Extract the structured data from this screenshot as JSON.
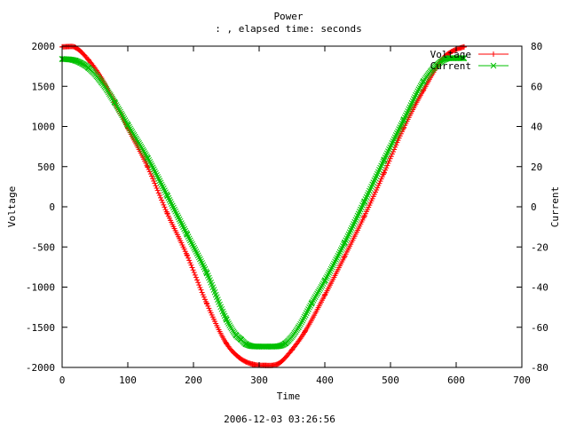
{
  "chart_data": {
    "type": "line",
    "title": "Power",
    "subtitle": ": , elapsed time:  seconds",
    "xlabel": "Time",
    "ylabel": "Voltage",
    "y2label": "Current",
    "footer": "2006-12-03 03:26:56",
    "xlim": [
      0,
      700
    ],
    "ylim": [
      -2000,
      2000
    ],
    "y2lim": [
      -80,
      80
    ],
    "x_ticks": [
      0,
      100,
      200,
      300,
      400,
      500,
      600,
      700
    ],
    "y_ticks": [
      -2000,
      -1500,
      -1000,
      -500,
      0,
      500,
      1000,
      1500,
      2000
    ],
    "y2_ticks": [
      -80,
      -60,
      -40,
      -20,
      0,
      20,
      40,
      60,
      80
    ],
    "grid": false,
    "legend_position": "top-right",
    "series": [
      {
        "name": "Voltage",
        "axis": "left",
        "marker": "plus",
        "color": "#ff0000",
        "x": [
          0,
          10,
          20,
          40,
          60,
          80,
          100,
          130,
          160,
          190,
          220,
          250,
          270,
          290,
          310,
          330,
          350,
          370,
          400,
          430,
          460,
          490,
          520,
          550,
          580,
          600,
          612
        ],
        "y": [
          1990,
          1995,
          1985,
          1830,
          1600,
          1300,
          980,
          500,
          -80,
          -600,
          -1200,
          -1700,
          -1880,
          -1960,
          -1975,
          -1950,
          -1780,
          -1550,
          -1100,
          -620,
          -120,
          420,
          980,
          1450,
          1850,
          1960,
          1990
        ]
      },
      {
        "name": "Current",
        "axis": "right",
        "marker": "x",
        "color": "#00c000",
        "x": [
          0,
          10,
          20,
          40,
          60,
          80,
          100,
          130,
          160,
          190,
          220,
          250,
          265,
          272,
          280,
          300,
          320,
          340,
          360,
          380,
          400,
          430,
          460,
          490,
          520,
          550,
          570,
          590,
          600,
          612
        ],
        "y": [
          73.6,
          73.4,
          72.8,
          69.2,
          62,
          52,
          40.8,
          24.4,
          5.6,
          -13.6,
          -32.8,
          -56,
          -64,
          -66,
          -68.4,
          -69.6,
          -69.6,
          -68,
          -60,
          -48,
          -36.8,
          -18,
          2.4,
          23.2,
          43.2,
          62.4,
          70.4,
          74,
          74,
          74
        ]
      }
    ]
  }
}
